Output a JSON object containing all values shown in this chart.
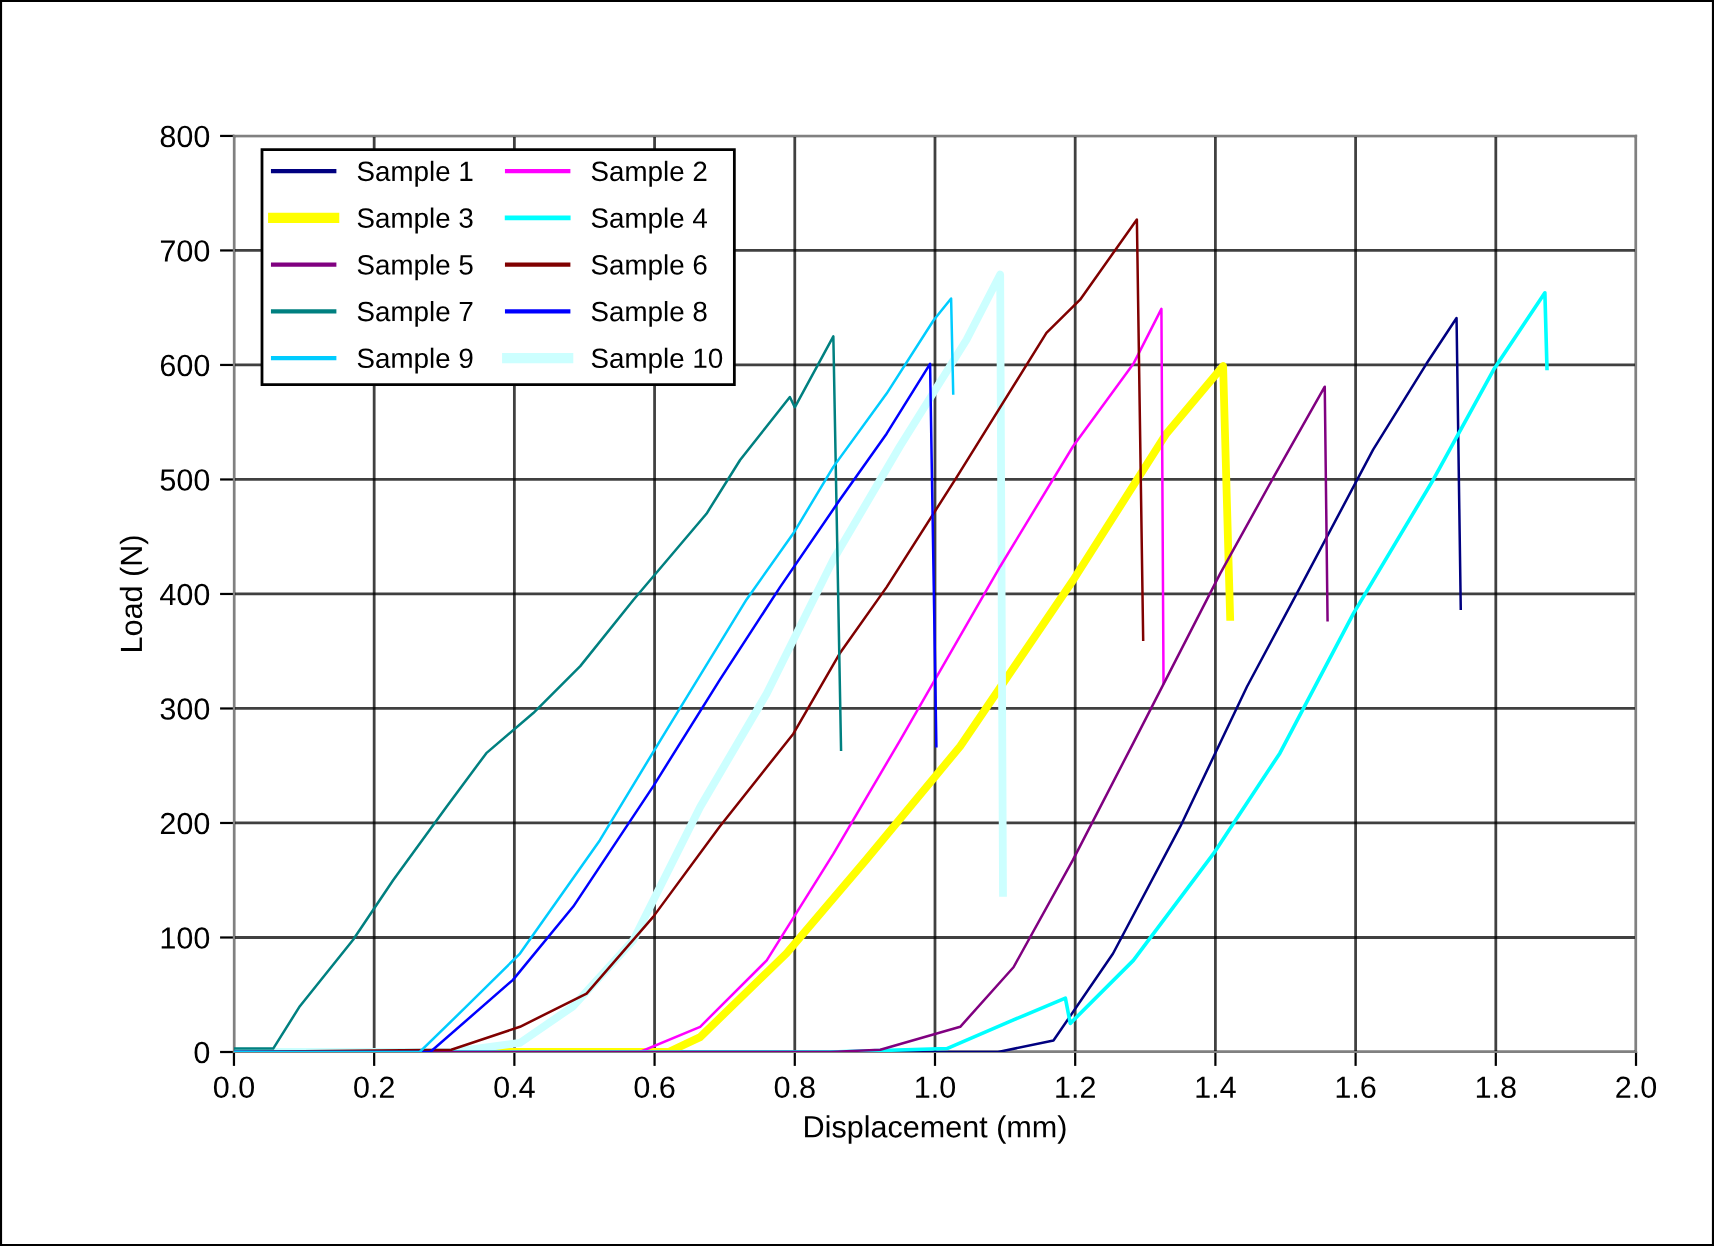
{
  "chart_data": {
    "type": "line",
    "xlabel": "Displacement (mm)",
    "ylabel": "Load (N)",
    "xlim": [
      0.0,
      2.0
    ],
    "xticks": [
      {
        "value": 0,
        "label": "0.0"
      },
      0.2,
      0.4,
      0.6,
      0.8,
      {
        "value": 1,
        "label": "1.0"
      },
      1.2,
      1.4,
      1.6,
      1.8,
      {
        "value": 2,
        "label": "2.0"
      }
    ],
    "ylim": [
      0,
      800
    ],
    "yticks": [
      0,
      100,
      200,
      300,
      400,
      500,
      600,
      700,
      800
    ],
    "grid": true,
    "legend": "top left",
    "marker": "none",
    "line_style": "solid",
    "series": [
      {
        "name": "Sample 1",
        "color": "#000080",
        "x": [
          0.0,
          1.0,
          1.09,
          1.169,
          1.254,
          1.35,
          1.445,
          1.521,
          1.625,
          1.701,
          1.744,
          1.75
        ],
        "values": [
          0,
          0,
          0,
          10,
          86,
          197,
          319,
          406,
          526,
          601,
          641,
          387
        ]
      },
      {
        "name": "Sample 2",
        "color": "#ff00ff",
        "x": [
          0.0,
          0.579,
          0.665,
          0.76,
          0.855,
          0.95,
          1.093,
          1.197,
          1.283,
          1.323,
          1.326
        ],
        "values": [
          0,
          0,
          22,
          80,
          173,
          272,
          424,
          529,
          601,
          649,
          322
        ]
      },
      {
        "name": "Sample 3",
        "color": "#ffff00",
        "x": [
          0.0,
          0.62,
          0.665,
          0.788,
          0.902,
          1.036,
          1.197,
          1.33,
          1.411,
          1.421
        ],
        "values": [
          0,
          0,
          13,
          86,
          168,
          267,
          412,
          540,
          599,
          380
        ]
      },
      {
        "name": "Sample 4",
        "color": "#00ffff",
        "x": [
          0.0,
          0.85,
          1.017,
          1.112,
          1.186,
          1.193,
          1.283,
          1.397,
          1.492,
          1.597,
          1.711,
          1.797,
          1.87,
          1.873
        ],
        "values": [
          0,
          0,
          3,
          28,
          47,
          25,
          80,
          173,
          261,
          383,
          500,
          596,
          663,
          597
        ]
      },
      {
        "name": "Sample 5",
        "color": "#800080",
        "x": [
          0.0,
          0.85,
          0.922,
          1.036,
          1.112,
          1.197,
          1.283,
          1.407,
          1.483,
          1.556,
          1.56
        ],
        "values": [
          0,
          0,
          2,
          22,
          74,
          168,
          270,
          418,
          502,
          581,
          377
        ]
      },
      {
        "name": "Sample 6",
        "color": "#800000",
        "x": [
          0.0,
          0.31,
          0.408,
          0.503,
          0.598,
          0.693,
          0.798,
          0.864,
          0.931,
          1.031,
          1.159,
          1.207,
          1.288,
          1.297
        ],
        "values": [
          0,
          2,
          22,
          51,
          118,
          197,
          278,
          348,
          406,
          502,
          628,
          657,
          727,
          360
        ]
      },
      {
        "name": "Sample 7",
        "color": "#008080",
        "x": [
          0.0,
          0.056,
          0.094,
          0.17,
          0.227,
          0.303,
          0.36,
          0.427,
          0.494,
          0.57,
          0.674,
          0.722,
          0.793,
          0.8,
          0.855,
          0.866
        ],
        "values": [
          3,
          3,
          40,
          98,
          150,
          214,
          261,
          296,
          337,
          395,
          470,
          517,
          572,
          563,
          625,
          264
        ]
      },
      {
        "name": "Sample 8",
        "color": "#0000ff",
        "x": [
          0.0,
          0.28,
          0.398,
          0.484,
          0.598,
          0.693,
          0.779,
          0.864,
          0.931,
          0.993,
          1.002
        ],
        "values": [
          0,
          0,
          63,
          127,
          232,
          325,
          406,
          482,
          540,
          601,
          267
        ]
      },
      {
        "name": "Sample 9",
        "color": "#00ccff",
        "x": [
          0.0,
          0.265,
          0.332,
          0.408,
          0.522,
          0.608,
          0.731,
          0.798,
          0.855,
          0.931,
          0.998,
          1.023,
          1.026
        ],
        "values": [
          0,
          0,
          40,
          86,
          185,
          272,
          395,
          453,
          511,
          575,
          639,
          658,
          575
        ]
      },
      {
        "name": "Sample 10",
        "color": "#ccffff",
        "x": [
          0.0,
          0.31,
          0.408,
          0.484,
          0.57,
          0.665,
          0.76,
          0.855,
          0.95,
          1.045,
          1.093,
          1.097
        ],
        "values": [
          0,
          0,
          8,
          40,
          98,
          214,
          313,
          430,
          529,
          622,
          679,
          139
        ]
      }
    ]
  }
}
